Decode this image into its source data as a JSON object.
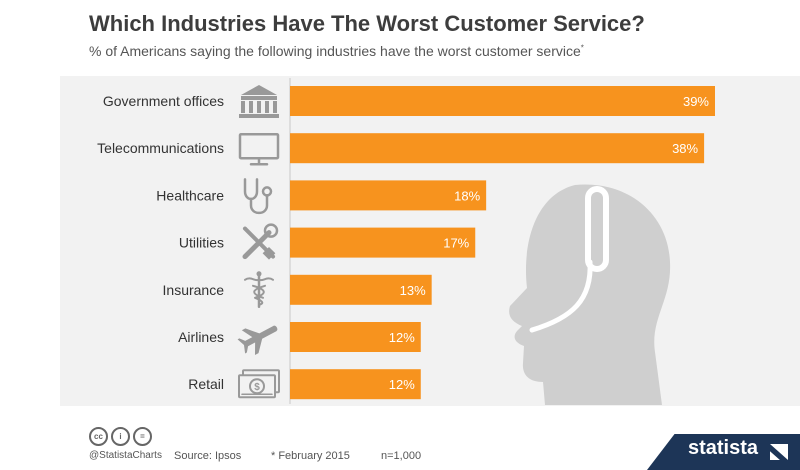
{
  "title": "Which Industries Have The Worst Customer Service?",
  "subtitle": "% of Americans saying the following industries have the worst customer service",
  "subtitle_mark": "*",
  "colors": {
    "bar": "#f7931e",
    "bar_label": "#ffffff",
    "icon": "#999999",
    "panel": "#f2f2f2",
    "headset": "#cfcfcf",
    "brand": "#1d3557"
  },
  "chart_data": {
    "type": "bar",
    "orientation": "horizontal",
    "categories": [
      "Government offices",
      "Telecommunications",
      "Healthcare",
      "Utilities",
      "Insurance",
      "Airlines",
      "Retail"
    ],
    "values": [
      39,
      38,
      18,
      17,
      13,
      12,
      12
    ],
    "value_labels": [
      "39%",
      "38%",
      "18%",
      "17%",
      "13%",
      "12%",
      "12%"
    ],
    "category_icons": [
      "government-building-icon",
      "monitor-icon",
      "stethoscope-icon",
      "wrench-screwdriver-icon",
      "caduceus-icon",
      "airplane-icon",
      "money-bills-icon"
    ],
    "xlim": [
      0,
      40
    ],
    "grid": false,
    "illustration": "headset-person-icon"
  },
  "footer": {
    "license_icons": [
      "cc-icon",
      "by-icon",
      "nd-icon"
    ],
    "license_marks": [
      "cc",
      "i",
      "="
    ],
    "handle": "@StatistaCharts",
    "source": "Source: Ipsos",
    "note": "* February 2015",
    "sample": "n=1,000",
    "brand": "statista"
  }
}
